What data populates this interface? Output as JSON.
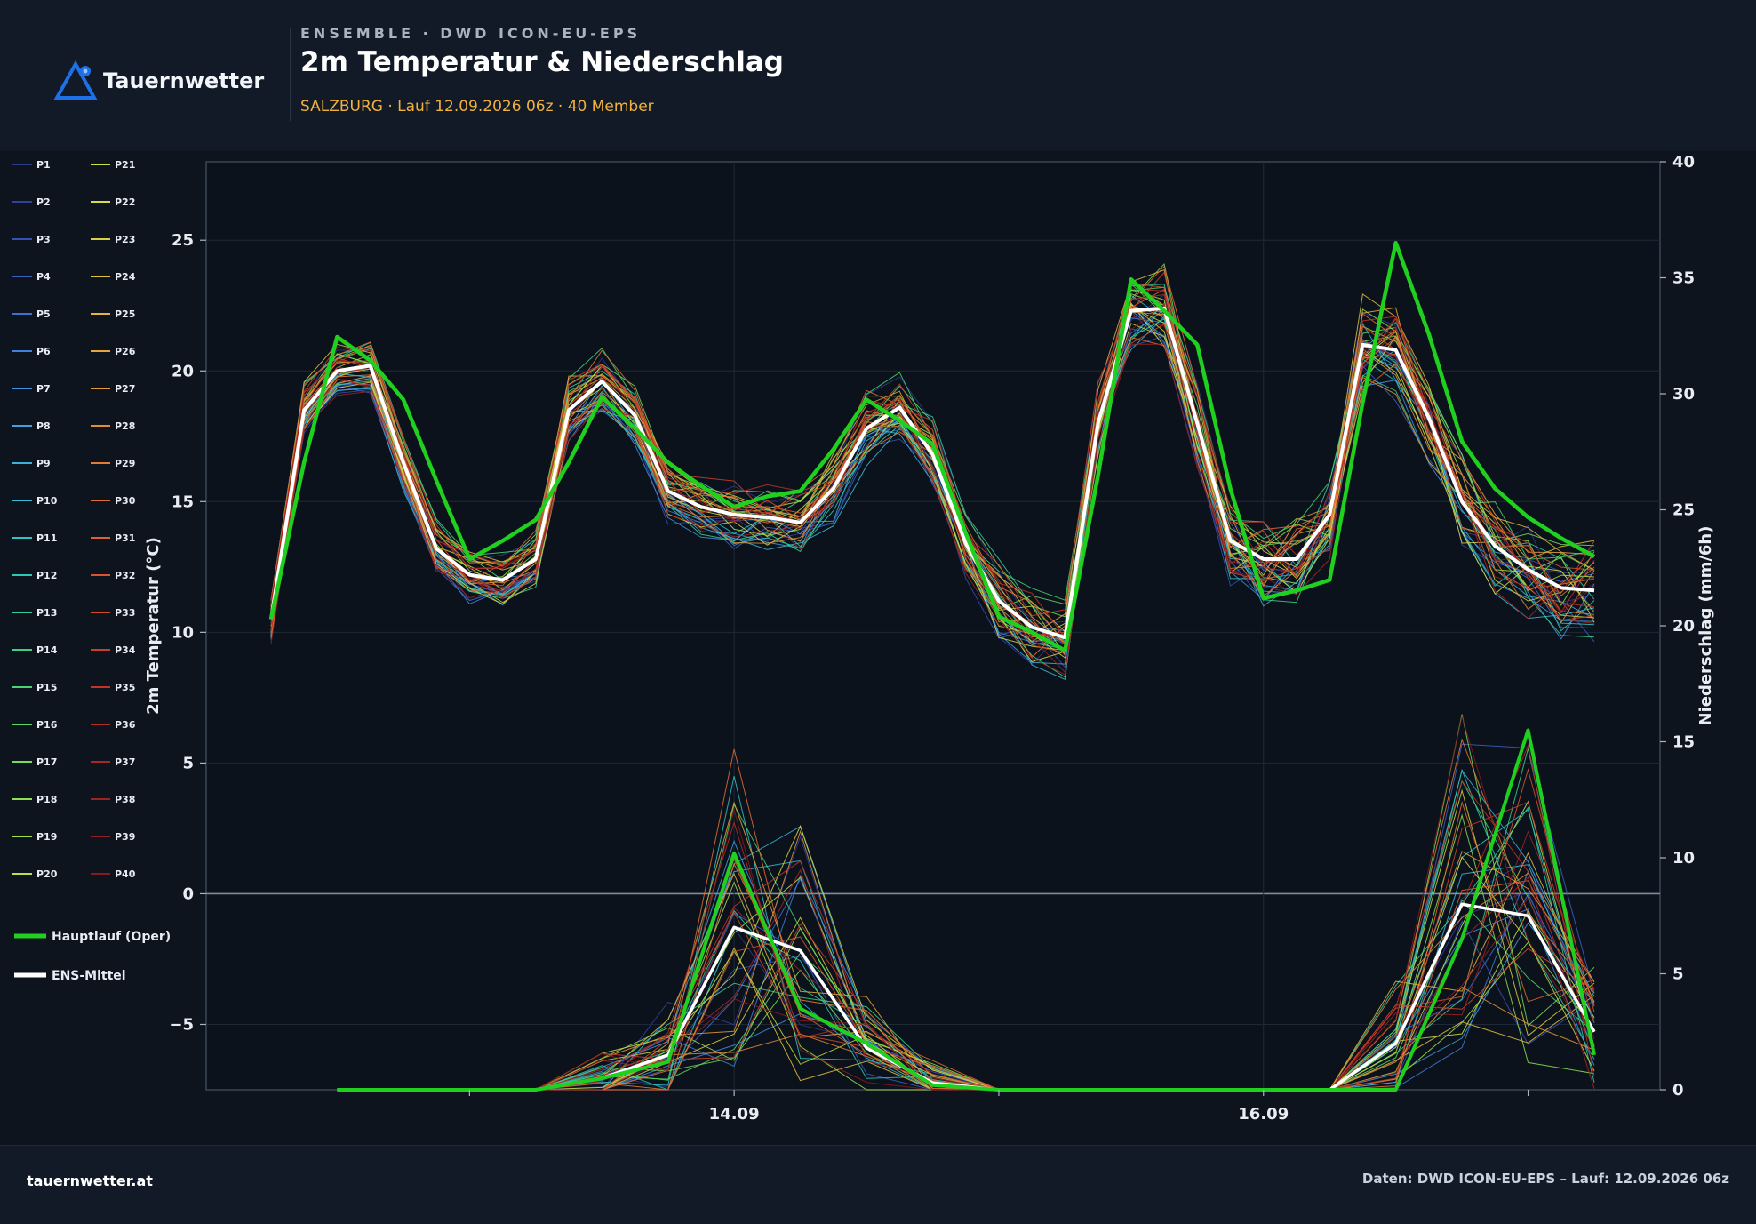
{
  "header": {
    "brand": "Tauernwetter",
    "kicker": "ENSEMBLE · DWD ICON-EU-EPS",
    "title": "2m Temperatur & Niederschlag",
    "subtitle": "SALZBURG · Lauf 12.09.2026 06z · 40 Member"
  },
  "footer": {
    "site": "tauernwetter.at",
    "credit": "Daten: DWD ICON-EU-EPS – Lauf: 12.09.2026 06z"
  },
  "colors": {
    "background": "#0e141d",
    "oper": "#1fd01f",
    "mean": "#ffffff",
    "accent": "#f0b23d",
    "logo": "#1f6fe6"
  },
  "chart_data": {
    "type": "line",
    "title": "2m Temperatur & Niederschlag",
    "x_unit": "hours since 12.09.2026 06z",
    "x_range": [
      0,
      120
    ],
    "xticks": [
      {
        "x": 42,
        "label": "14.09"
      },
      {
        "x": 90,
        "label": "16.09"
      }
    ],
    "xminor": [
      18,
      66,
      114
    ],
    "grid": true,
    "y_left": {
      "label": "2m Temperatur (°C)",
      "range": [
        -7.5,
        28
      ],
      "ticks": [
        -5,
        0,
        5,
        10,
        15,
        20,
        25
      ]
    },
    "y_right": {
      "label": "Niederschlag (mm/6h)",
      "range": [
        0,
        40
      ],
      "ticks": [
        0,
        5,
        10,
        15,
        20,
        25,
        30,
        35,
        40
      ]
    },
    "legend_placement": "left",
    "member_names": [
      "P1",
      "P2",
      "P3",
      "P4",
      "P5",
      "P6",
      "P7",
      "P8",
      "P9",
      "P10",
      "P11",
      "P12",
      "P13",
      "P14",
      "P15",
      "P16",
      "P17",
      "P18",
      "P19",
      "P20",
      "P21",
      "P22",
      "P23",
      "P24",
      "P25",
      "P26",
      "P27",
      "P28",
      "P29",
      "P30",
      "P31",
      "P32",
      "P33",
      "P34",
      "P35",
      "P36",
      "P37",
      "P38",
      "P39",
      "P40"
    ],
    "member_colors": [
      "#2e3a8c",
      "#3240a0",
      "#3650b4",
      "#3a60c4",
      "#3d70d2",
      "#3f80dc",
      "#4090e2",
      "#3fa0e2",
      "#3cb0de",
      "#36bcd6",
      "#30c4c8",
      "#2cc8b4",
      "#32cc9c",
      "#3ad088",
      "#48d474",
      "#5cd866",
      "#74dc5a",
      "#8ce052",
      "#a4e24c",
      "#b8e246",
      "#c8e044",
      "#d6dc42",
      "#dcd040",
      "#e0c23e",
      "#e4b43c",
      "#e6a63a",
      "#e69838",
      "#e68a36",
      "#e67c34",
      "#e46e32",
      "#e06030",
      "#da542e",
      "#d4482c",
      "#cc3e2a",
      "#c23428",
      "#b82c26",
      "#ac2624",
      "#a02222",
      "#941e20",
      "#881a1e"
    ],
    "legend_special": [
      {
        "name": "Hauptlauf (Oper)",
        "color": "#1fd01f"
      },
      {
        "name": "ENS-Mittel",
        "color": "#ffffff"
      }
    ],
    "temperature": {
      "x": [
        0,
        3,
        6,
        9,
        12,
        15,
        18,
        21,
        24,
        27,
        30,
        33,
        36,
        39,
        42,
        45,
        48,
        51,
        54,
        57,
        60,
        63,
        66,
        69,
        72,
        75,
        78,
        81,
        84,
        87,
        90,
        93,
        96,
        99,
        102,
        105,
        108,
        111,
        114,
        117,
        120
      ],
      "mean": [
        10.5,
        18.5,
        20.0,
        20.2,
        16.5,
        13.2,
        12.2,
        12.0,
        12.8,
        18.5,
        19.6,
        18.3,
        15.4,
        14.8,
        14.5,
        14.4,
        14.2,
        15.5,
        17.8,
        18.6,
        16.8,
        13.4,
        11.2,
        10.2,
        9.8,
        18.0,
        22.3,
        22.4,
        18.0,
        13.5,
        12.8,
        12.8,
        14.5,
        21.0,
        20.8,
        18.2,
        15.0,
        13.3,
        12.4,
        11.7,
        11.6
      ],
      "oper": [
        10.5,
        16.5,
        21.3,
        20.4,
        18.9,
        15.8,
        12.8,
        13.5,
        14.3,
        16.5,
        19.0,
        17.8,
        16.5,
        15.6,
        14.8,
        15.2,
        15.4,
        17.0,
        18.9,
        18.1,
        17.2,
        13.8,
        10.6,
        10.0,
        9.3,
        16.0,
        23.5,
        22.3,
        21.0,
        15.5,
        11.3,
        11.6,
        12.0,
        18.8,
        24.9,
        21.4,
        17.3,
        15.5,
        14.4,
        13.6,
        12.9
      ]
    },
    "precipitation": {
      "x": [
        6,
        12,
        18,
        24,
        30,
        36,
        42,
        48,
        54,
        60,
        66,
        72,
        78,
        84,
        90,
        96,
        102,
        108,
        114,
        120
      ],
      "mean": [
        0,
        0,
        0,
        0,
        0.5,
        1.5,
        7,
        6,
        1.8,
        0.3,
        0,
        0,
        0,
        0,
        0,
        0,
        2,
        8,
        7.5,
        2.5
      ],
      "oper": [
        0,
        0,
        0,
        0,
        0.5,
        1.2,
        10.2,
        3.5,
        2,
        0.2,
        0,
        0,
        0,
        0,
        0,
        0,
        0,
        6.5,
        15.5,
        1.5
      ]
    }
  }
}
